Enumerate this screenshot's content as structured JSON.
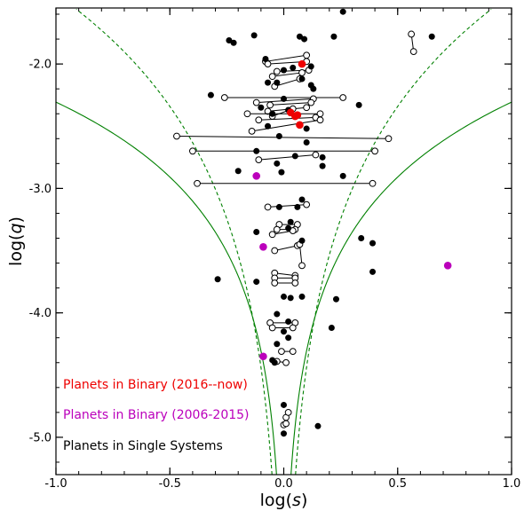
{
  "chart_data": {
    "type": "scatter",
    "title": "",
    "xlabel_prefix": "log(",
    "xlabel_var": "s",
    "xlabel_suffix": ")",
    "ylabel_prefix": "log(",
    "ylabel_var": "q",
    "ylabel_suffix": ")",
    "xlim": [
      -1.0,
      1.0
    ],
    "ylim": [
      -5.3,
      -1.55
    ],
    "xticks": [
      -1.0,
      -0.5,
      0.0,
      0.5,
      1.0
    ],
    "xtick_labels": [
      "-1.0",
      "-0.5",
      "0.0",
      "0.5",
      "1.0"
    ],
    "yticks": [
      -5.0,
      -4.0,
      -3.0,
      -2.0
    ],
    "ytick_labels": [
      "-5.0",
      "-4.0",
      "-3.0",
      "-2.0"
    ],
    "legend_placement": "bottom-left",
    "colors": {
      "single": "#000000",
      "binary_2006": "#bb00bb",
      "binary_2016": "#ee0000",
      "curve": "#008000"
    },
    "series": [
      {
        "name": "Planets in Binary (2016--now)",
        "color": "#ee0000",
        "points": [
          [
            0.08,
            -2.0
          ],
          [
            0.03,
            -2.39
          ],
          [
            0.06,
            -2.41
          ],
          [
            0.07,
            -2.49
          ],
          [
            0.05,
            -2.42
          ]
        ]
      },
      {
        "name": "Planets in Binary (2006-2015)",
        "color": "#bb00bb",
        "points": [
          [
            -0.12,
            -2.9
          ],
          [
            -0.09,
            -3.47
          ],
          [
            0.72,
            -3.62
          ],
          [
            -0.09,
            -4.35
          ]
        ]
      },
      {
        "name": "Planets in Single Systems",
        "color": "#000000",
        "points": [
          [
            -0.24,
            -1.81
          ],
          [
            -0.22,
            -1.83
          ],
          [
            -0.13,
            -1.77
          ],
          [
            0.07,
            -1.78
          ],
          [
            0.09,
            -1.8
          ],
          [
            0.22,
            -1.78
          ],
          [
            0.26,
            -1.58
          ],
          [
            0.65,
            -1.78
          ],
          [
            -0.08,
            -1.96
          ],
          [
            0.0,
            -2.05
          ],
          [
            0.04,
            -2.03
          ],
          [
            0.12,
            -2.02
          ],
          [
            -0.07,
            -2.15
          ],
          [
            -0.03,
            -2.15
          ],
          [
            0.08,
            -2.12
          ],
          [
            0.12,
            -2.17
          ],
          [
            -0.32,
            -2.25
          ],
          [
            0.0,
            -2.28
          ],
          [
            0.13,
            -2.2
          ],
          [
            -0.1,
            -2.35
          ],
          [
            -0.05,
            -2.4
          ],
          [
            0.02,
            -2.37
          ],
          [
            0.33,
            -2.33
          ],
          [
            -0.07,
            -2.5
          ],
          [
            0.1,
            -2.52
          ],
          [
            -0.02,
            -2.58
          ],
          [
            0.1,
            -2.63
          ],
          [
            -0.12,
            -2.7
          ],
          [
            0.05,
            -2.74
          ],
          [
            -0.03,
            -2.8
          ],
          [
            0.17,
            -2.75
          ],
          [
            0.17,
            -2.82
          ],
          [
            -0.2,
            -2.86
          ],
          [
            -0.01,
            -2.87
          ],
          [
            0.26,
            -2.9
          ],
          [
            0.08,
            -3.09
          ],
          [
            -0.02,
            -3.15
          ],
          [
            0.06,
            -3.15
          ],
          [
            0.03,
            -3.27
          ],
          [
            -0.12,
            -3.35
          ],
          [
            0.02,
            -3.32
          ],
          [
            0.08,
            -3.42
          ],
          [
            0.34,
            -3.4
          ],
          [
            0.39,
            -3.44
          ],
          [
            0.39,
            -3.67
          ],
          [
            -0.29,
            -3.73
          ],
          [
            -0.12,
            -3.75
          ],
          [
            0.0,
            -3.87
          ],
          [
            0.03,
            -3.88
          ],
          [
            0.08,
            -3.87
          ],
          [
            0.23,
            -3.89
          ],
          [
            -0.03,
            -4.01
          ],
          [
            0.02,
            -4.07
          ],
          [
            0.0,
            -4.15
          ],
          [
            0.21,
            -4.12
          ],
          [
            0.02,
            -4.2
          ],
          [
            -0.03,
            -4.25
          ],
          [
            -0.05,
            -4.38
          ],
          [
            -0.04,
            -4.4
          ],
          [
            0.0,
            -4.74
          ],
          [
            0.0,
            -4.97
          ],
          [
            0.15,
            -4.91
          ]
        ]
      }
    ],
    "pairs": [
      [
        [
          0.56,
          -1.76
        ],
        [
          0.57,
          -1.9
        ]
      ],
      [
        [
          -0.08,
          -1.98
        ],
        [
          0.1,
          -1.93
        ]
      ],
      [
        [
          -0.07,
          -2.0
        ],
        [
          0.1,
          -1.98
        ]
      ],
      [
        [
          -0.03,
          -2.06
        ],
        [
          0.11,
          -2.05
        ]
      ],
      [
        [
          -0.05,
          -2.1
        ],
        [
          0.08,
          -2.07
        ]
      ],
      [
        [
          -0.04,
          -2.18
        ],
        [
          0.07,
          -2.12
        ]
      ],
      [
        [
          -0.26,
          -2.27
        ],
        [
          0.26,
          -2.27
        ]
      ],
      [
        [
          -0.12,
          -2.31
        ],
        [
          0.13,
          -2.28
        ]
      ],
      [
        [
          -0.06,
          -2.33
        ],
        [
          0.12,
          -2.31
        ]
      ],
      [
        [
          -0.07,
          -2.38
        ],
        [
          0.1,
          -2.35
        ]
      ],
      [
        [
          -0.16,
          -2.4
        ],
        [
          0.16,
          -2.4
        ]
      ],
      [
        [
          -0.05,
          -2.42
        ],
        [
          0.04,
          -2.36
        ]
      ],
      [
        [
          -0.11,
          -2.45
        ],
        [
          0.14,
          -2.43
        ]
      ],
      [
        [
          -0.14,
          -2.54
        ],
        [
          0.16,
          -2.45
        ]
      ],
      [
        [
          -0.47,
          -2.58
        ],
        [
          0.46,
          -2.6
        ]
      ],
      [
        [
          -0.4,
          -2.7
        ],
        [
          0.4,
          -2.7
        ]
      ],
      [
        [
          -0.11,
          -2.77
        ],
        [
          0.14,
          -2.73
        ]
      ],
      [
        [
          -0.38,
          -2.96
        ],
        [
          0.39,
          -2.96
        ]
      ],
      [
        [
          -0.07,
          -3.15
        ],
        [
          0.1,
          -3.13
        ]
      ],
      [
        [
          -0.02,
          -3.29
        ],
        [
          0.06,
          -3.29
        ]
      ],
      [
        [
          -0.03,
          -3.33
        ],
        [
          0.05,
          -3.33
        ]
      ],
      [
        [
          -0.05,
          -3.37
        ],
        [
          0.04,
          -3.34
        ]
      ],
      [
        [
          -0.04,
          -3.5
        ],
        [
          0.06,
          -3.46
        ]
      ],
      [
        [
          0.07,
          -3.45
        ],
        [
          0.08,
          -3.62
        ]
      ],
      [
        [
          -0.04,
          -3.68
        ],
        [
          0.05,
          -3.7
        ]
      ],
      [
        [
          -0.04,
          -3.72
        ],
        [
          0.05,
          -3.72
        ]
      ],
      [
        [
          -0.04,
          -3.76
        ],
        [
          0.05,
          -3.76
        ]
      ],
      [
        [
          -0.06,
          -4.08
        ],
        [
          0.05,
          -4.08
        ]
      ],
      [
        [
          -0.05,
          -4.12
        ],
        [
          0.04,
          -4.12
        ]
      ],
      [
        [
          -0.01,
          -4.31
        ],
        [
          0.04,
          -4.31
        ]
      ],
      [
        [
          -0.03,
          -4.39
        ],
        [
          0.01,
          -4.4
        ]
      ],
      [
        [
          0.01,
          -4.84
        ],
        [
          0.02,
          -4.8
        ]
      ],
      [
        [
          0.0,
          -4.9
        ],
        [
          0.01,
          -4.89
        ]
      ]
    ]
  },
  "legend": [
    {
      "label": "Planets in Binary (2016--now)",
      "color": "#ee0000"
    },
    {
      "label": "Planets in Binary (2006-2015)",
      "color": "#bb00bb"
    },
    {
      "label": "Planets in Single Systems",
      "color": "#000000"
    }
  ]
}
